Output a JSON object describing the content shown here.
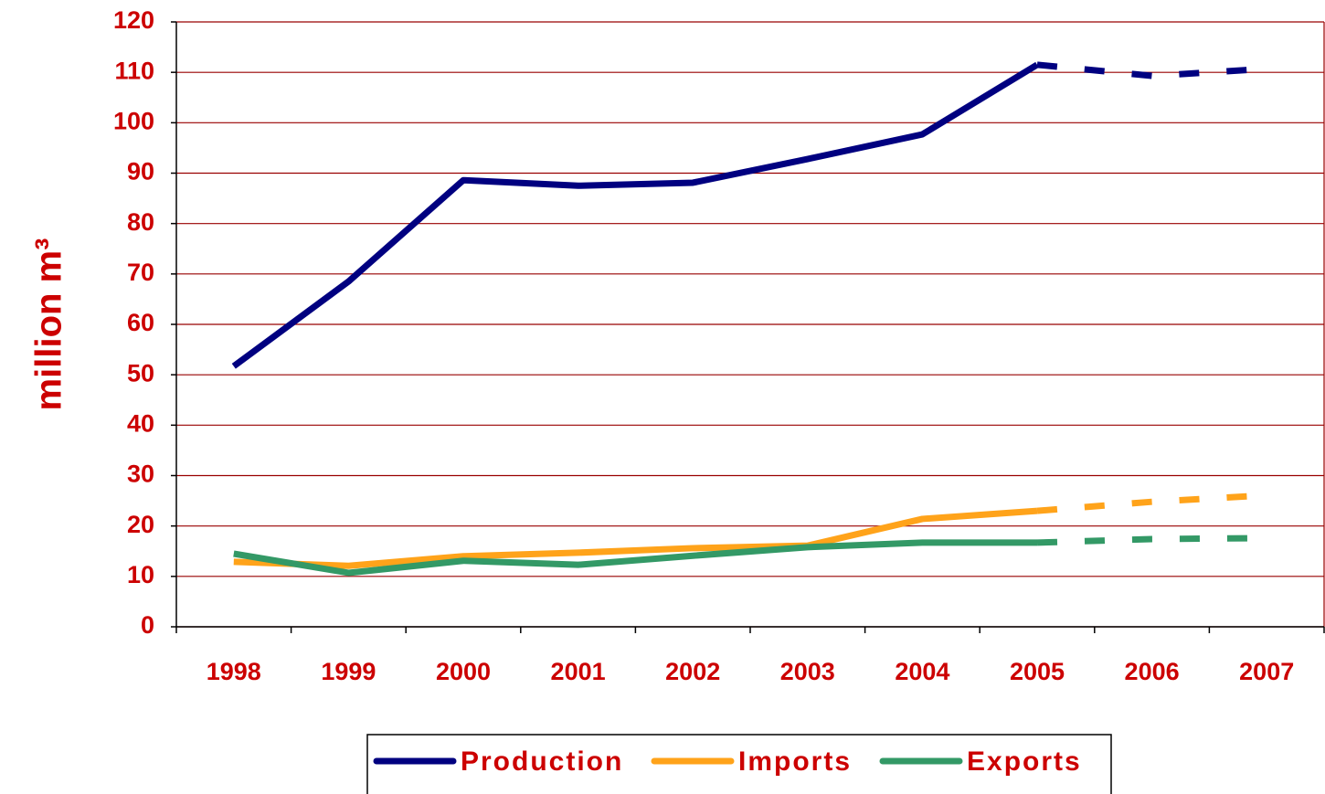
{
  "chart_data": {
    "type": "line",
    "y_label": "million m³",
    "categories": [
      "1998",
      "1999",
      "2000",
      "2001",
      "2002",
      "2003",
      "2004",
      "2005",
      "2006",
      "2007"
    ],
    "projected_from": "2005",
    "series": [
      {
        "name": "Production",
        "color": "#000080",
        "values": [
          51.7,
          68.5,
          88.6,
          87.5,
          88.1,
          92.8,
          97.7,
          111.5,
          109.3,
          110.7
        ]
      },
      {
        "name": "Imports",
        "color": "#ffa31a",
        "values": [
          12.9,
          12.1,
          14.0,
          14.7,
          15.6,
          16.1,
          21.4,
          23.0,
          24.8,
          26.1
        ]
      },
      {
        "name": "Exports",
        "color": "#339966",
        "values": [
          14.5,
          10.7,
          13.1,
          12.3,
          14.1,
          15.8,
          16.7,
          16.7,
          17.4,
          17.6
        ]
      }
    ],
    "ylim": [
      0,
      120
    ],
    "yticks": [
      0,
      10,
      20,
      30,
      40,
      50,
      60,
      70,
      80,
      90,
      100,
      110,
      120
    ],
    "grid": true,
    "legend": "bottom"
  }
}
